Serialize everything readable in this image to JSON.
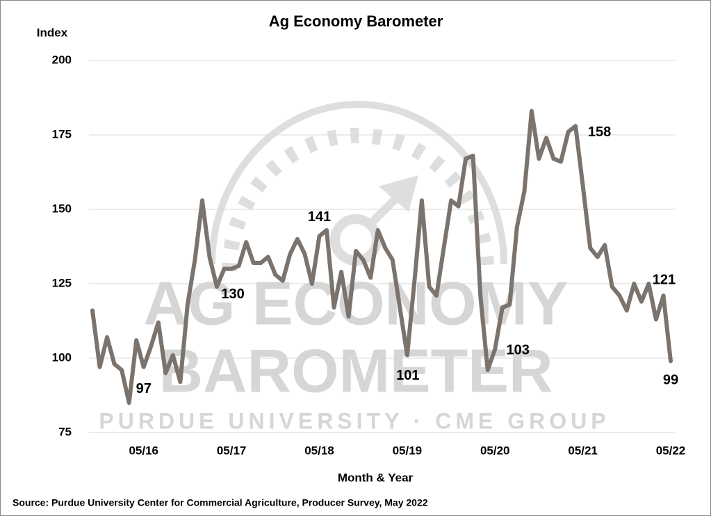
{
  "chart_data": {
    "type": "line",
    "title": "Ag Economy Barometer",
    "y_label": "Index",
    "x_label": "Month & Year",
    "source": "Source: Purdue University Center for Commercial Agriculture, Producer Survey, May 2022",
    "watermark": [
      "AG ECONOMY",
      "BAROMETER",
      "PURDUE UNIVERSITY · CME GROUP"
    ],
    "categories": [
      null,
      null,
      null,
      null,
      null,
      null,
      null,
      "05/16",
      null,
      null,
      null,
      null,
      null,
      null,
      null,
      null,
      null,
      null,
      null,
      "05/17",
      null,
      null,
      null,
      null,
      null,
      null,
      null,
      null,
      null,
      null,
      null,
      "05/18",
      null,
      null,
      null,
      null,
      null,
      null,
      null,
      null,
      null,
      null,
      null,
      "05/19",
      null,
      null,
      null,
      null,
      null,
      null,
      null,
      null,
      null,
      null,
      null,
      "05/20",
      null,
      null,
      null,
      null,
      null,
      null,
      null,
      null,
      null,
      null,
      null,
      "05/21",
      null,
      null,
      null,
      null,
      null,
      null,
      null,
      null,
      null,
      null,
      null,
      "05/22"
    ],
    "series": [
      {
        "color": "#7b736d",
        "values": [
          116,
          97,
          107,
          98,
          96,
          85,
          106,
          97,
          104,
          112,
          95,
          101,
          92,
          118,
          133,
          153,
          134,
          124,
          130,
          130,
          131,
          139,
          132,
          132,
          134,
          128,
          126,
          135,
          140,
          135,
          125,
          141,
          143,
          117,
          129,
          114,
          136,
          133,
          127,
          143,
          137,
          133,
          117,
          101,
          126,
          153,
          124,
          121,
          137,
          153,
          151,
          167,
          168,
          121,
          96,
          103,
          117,
          118,
          144,
          156,
          183,
          167,
          174,
          167,
          166,
          176,
          178,
          158,
          137,
          134,
          138,
          124,
          121,
          116,
          125,
          119,
          125,
          113,
          121,
          99
        ],
        "value_labels": [
          null,
          null,
          null,
          null,
          null,
          null,
          null,
          "97",
          null,
          null,
          null,
          null,
          null,
          null,
          null,
          null,
          null,
          null,
          null,
          "130",
          null,
          null,
          null,
          null,
          null,
          null,
          null,
          null,
          null,
          null,
          null,
          "141",
          null,
          null,
          null,
          null,
          null,
          null,
          null,
          null,
          null,
          null,
          null,
          "101",
          null,
          null,
          null,
          null,
          null,
          null,
          null,
          null,
          null,
          null,
          null,
          "103",
          null,
          null,
          null,
          null,
          null,
          null,
          null,
          null,
          null,
          null,
          null,
          "158",
          null,
          null,
          null,
          null,
          null,
          null,
          null,
          null,
          null,
          null,
          "121",
          "99"
        ]
      }
    ],
    "ylim": [
      75,
      200
    ],
    "yticks": [
      75,
      100,
      125,
      150,
      175,
      200
    ],
    "grid": true
  }
}
